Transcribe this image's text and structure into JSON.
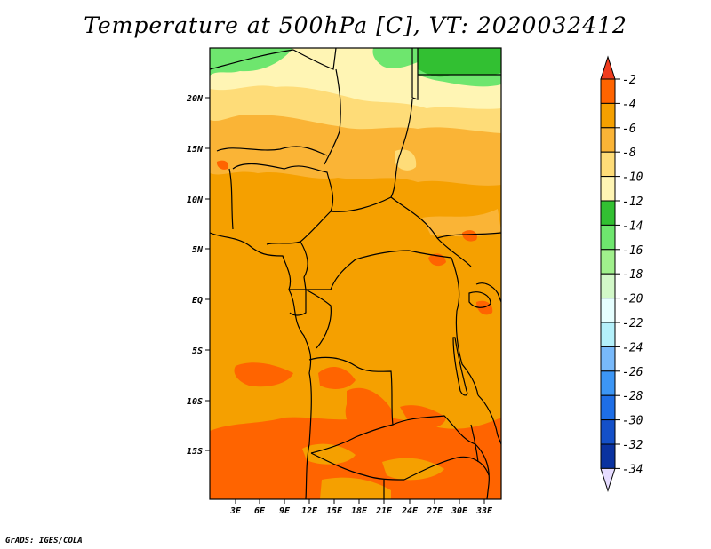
{
  "title": "Temperature at 500hPa [C], VT: 2020032412",
  "footer": "GrADS: IGES/COLA",
  "map": {
    "lat_labels": [
      "20N",
      "15N",
      "10N",
      "5N",
      "EQ",
      "5S",
      "10S",
      "15S"
    ],
    "lon_labels": [
      "3E",
      "6E",
      "9E",
      "12E",
      "15E",
      "18E",
      "21E",
      "24E",
      "27E",
      "30E",
      "33E"
    ]
  },
  "colorbar": {
    "label_values": [
      "-2",
      "-4",
      "-6",
      "-8",
      "-10",
      "-12",
      "-14",
      "-16",
      "-18",
      "-20",
      "-22",
      "-24",
      "-26",
      "-28",
      "-30",
      "-32",
      "-34"
    ],
    "colors": {
      "gt_-2": "#f03c1e",
      "-2_-4": "#ff6400",
      "-4_-6": "#f5a000",
      "-6_-8": "#fab436",
      "-8_-10": "#fedc78",
      "-10_-12": "#fff5b4",
      "-12_-14": "#32c032",
      "-14_-16": "#6ee66e",
      "-16_-18": "#a0f08c",
      "-18_-20": "#d2f8c8",
      "-20_-22": "#e6ffff",
      "-22_-24": "#b4f0fa",
      "-24_-26": "#78b9fa",
      "-26_-28": "#3c96f5",
      "-28_-30": "#1e6ee6",
      "-30_-32": "#1450c8",
      "-32_-34": "#0a32a0",
      "lt_-34": "#e6dcff"
    }
  },
  "fill_colors": {
    "dark_orange": "#ff6400",
    "orange": "#f5a000",
    "light_orange": "#fab436",
    "yellow": "#fedc78",
    "pale_yellow": "#fff5b4",
    "green": "#32c032",
    "light_green": "#6ee66e"
  }
}
